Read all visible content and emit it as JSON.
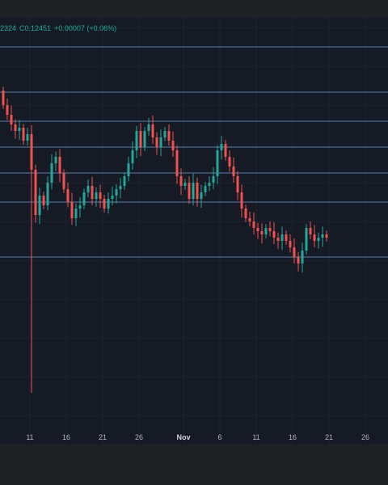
{
  "legend": {
    "open_fragment": "2324",
    "close_label": "C",
    "close_value": "0.12451",
    "change": "+0.00007 (+0.06%)"
  },
  "colors": {
    "background": "#151a25",
    "up": "#26a69a",
    "down": "#ef5350",
    "level_line": "#5b7fae",
    "grid": "#1e2330",
    "legend_text": "#22ab94"
  },
  "chart_data": {
    "type": "candlestick",
    "title": "",
    "xlabel": "",
    "ylabel": "",
    "grid": true,
    "x_ticks": [
      {
        "label": "11",
        "index": 7
      },
      {
        "label": "16",
        "index": 16
      },
      {
        "label": "21",
        "index": 25
      },
      {
        "label": "26",
        "index": 34
      },
      {
        "label": "Nov",
        "index": 45
      },
      {
        "label": "6",
        "index": 54
      },
      {
        "label": "11",
        "index": 63
      },
      {
        "label": "16",
        "index": 72
      },
      {
        "label": "21",
        "index": 81
      },
      {
        "label": "26",
        "index": 90
      }
    ],
    "horizontal_levels": [
      1,
      0.86,
      0.77,
      0.69,
      0.61,
      0.52,
      0.35
    ],
    "price_range": [
      0,
      1.06
    ],
    "series": [
      [
        0.865,
        0.82
      ],
      [
        0.82,
        0.79
      ],
      [
        0.79,
        0.76
      ],
      [
        0.76,
        0.74
      ],
      [
        0.74,
        0.75
      ],
      [
        0.75,
        0.71
      ],
      [
        0.71,
        0.73
      ],
      [
        0.73,
        0.62
      ],
      [
        0.62,
        0.48
      ],
      [
        0.48,
        0.54
      ],
      [
        0.54,
        0.51
      ],
      [
        0.51,
        0.58
      ],
      [
        0.58,
        0.64
      ],
      [
        0.64,
        0.66
      ],
      [
        0.66,
        0.61
      ],
      [
        0.61,
        0.56
      ],
      [
        0.56,
        0.52
      ],
      [
        0.52,
        0.47
      ],
      [
        0.47,
        0.5
      ],
      [
        0.5,
        0.51
      ],
      [
        0.51,
        0.55
      ],
      [
        0.55,
        0.57
      ],
      [
        0.57,
        0.53
      ],
      [
        0.53,
        0.55
      ],
      [
        0.55,
        0.53
      ],
      [
        0.53,
        0.5
      ],
      [
        0.5,
        0.53
      ],
      [
        0.53,
        0.54
      ],
      [
        0.54,
        0.56
      ],
      [
        0.56,
        0.57
      ],
      [
        0.57,
        0.6
      ],
      [
        0.6,
        0.64
      ],
      [
        0.64,
        0.68
      ],
      [
        0.68,
        0.74
      ],
      [
        0.74,
        0.69
      ],
      [
        0.69,
        0.74
      ],
      [
        0.74,
        0.76
      ],
      [
        0.76,
        0.72
      ],
      [
        0.72,
        0.69
      ],
      [
        0.69,
        0.72
      ],
      [
        0.72,
        0.74
      ],
      [
        0.74,
        0.71
      ],
      [
        0.71,
        0.68
      ],
      [
        0.68,
        0.6
      ],
      [
        0.6,
        0.57
      ],
      [
        0.57,
        0.58
      ],
      [
        0.58,
        0.53
      ],
      [
        0.53,
        0.58
      ],
      [
        0.58,
        0.53
      ],
      [
        0.53,
        0.55
      ],
      [
        0.55,
        0.57
      ],
      [
        0.57,
        0.58
      ],
      [
        0.58,
        0.6
      ],
      [
        0.6,
        0.68
      ],
      [
        0.68,
        0.7
      ],
      [
        0.7,
        0.66
      ],
      [
        0.66,
        0.63
      ],
      [
        0.63,
        0.6
      ],
      [
        0.6,
        0.55
      ],
      [
        0.55,
        0.5
      ],
      [
        0.5,
        0.47
      ],
      [
        0.47,
        0.46
      ],
      [
        0.46,
        0.44
      ],
      [
        0.44,
        0.43
      ],
      [
        0.43,
        0.42
      ],
      [
        0.42,
        0.44
      ],
      [
        0.44,
        0.43
      ],
      [
        0.43,
        0.41
      ],
      [
        0.41,
        0.4
      ],
      [
        0.4,
        0.42
      ],
      [
        0.42,
        0.4
      ],
      [
        0.4,
        0.38
      ],
      [
        0.38,
        0.35
      ],
      [
        0.35,
        0.33
      ],
      [
        0.33,
        0.37
      ],
      [
        0.37,
        0.44
      ],
      [
        0.44,
        0.42
      ],
      [
        0.42,
        0.4
      ],
      [
        0.4,
        0.41
      ],
      [
        0.41,
        0.42
      ],
      [
        0.42,
        0.41
      ]
    ]
  }
}
